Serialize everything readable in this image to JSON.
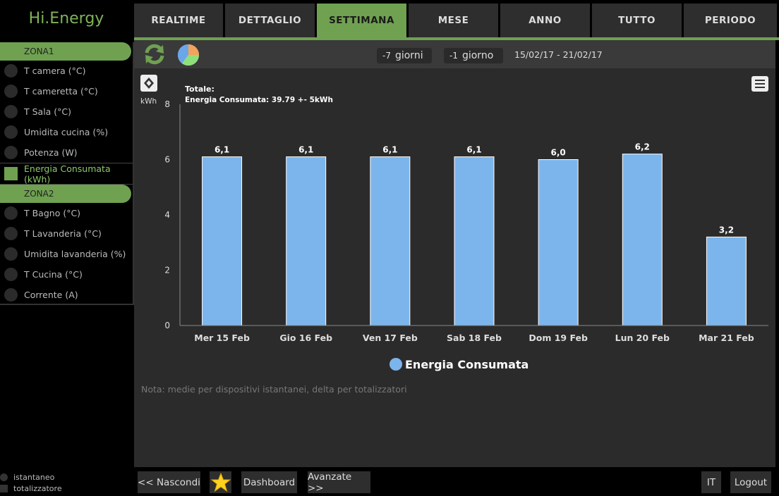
{
  "app_title": "Hi.Energy",
  "sidebar": {
    "zones": [
      {
        "name": "ZONA1",
        "items": [
          {
            "label": "T camera (°C)",
            "kind": "instant"
          },
          {
            "label": "T cameretta (°C)",
            "kind": "instant"
          },
          {
            "label": "T Sala (°C)",
            "kind": "instant"
          },
          {
            "label": "Umidita cucina (%)",
            "kind": "instant"
          },
          {
            "label": "Potenza (W)",
            "kind": "instant"
          },
          {
            "label": "Energia Consumata (kWh)",
            "kind": "total",
            "active": true
          }
        ]
      },
      {
        "name": "ZONA2",
        "items": [
          {
            "label": "T Bagno (°C)",
            "kind": "instant"
          },
          {
            "label": "T Lavanderia (°C)",
            "kind": "instant"
          },
          {
            "label": "Umidita lavanderia (%)",
            "kind": "instant"
          },
          {
            "label": "T Cucina (°C)",
            "kind": "instant"
          },
          {
            "label": "Corrente (A)",
            "kind": "instant"
          }
        ]
      }
    ],
    "legend": {
      "instant": "istantaneo",
      "total": "totalizzatore"
    }
  },
  "tabs": [
    {
      "label": "REALTIME"
    },
    {
      "label": "DETTAGLIO"
    },
    {
      "label": "SETTIMANA",
      "active": true
    },
    {
      "label": "MESE"
    },
    {
      "label": "ANNO"
    },
    {
      "label": "TUTTO"
    },
    {
      "label": "PERIODO"
    }
  ],
  "toolbar": {
    "minus_week_num": "-7",
    "minus_week_label": "giorni",
    "minus_day_num": "-1",
    "minus_day_label": "giorno",
    "date_range": "15/02/17 - 21/02/17"
  },
  "chart_data": {
    "type": "bar",
    "categories": [
      "Mer 15 Feb",
      "Gio 16 Feb",
      "Ven 17 Feb",
      "Sab 18 Feb",
      "Dom 19 Feb",
      "Lun 20 Feb",
      "Mar 21 Feb"
    ],
    "series": [
      {
        "name": "Energia Consumata",
        "values": [
          6.1,
          6.1,
          6.1,
          6.1,
          6.0,
          6.2,
          3.2
        ],
        "color": "#7cb5ec"
      }
    ],
    "data_labels": [
      "6,1",
      "6,1",
      "6,1",
      "6,1",
      "6,0",
      "6,2",
      "3,2"
    ],
    "title": "Totale:",
    "subtitle": "Energia Consumata: 39.79 +- 5kWh",
    "ylabel": "kWh",
    "ylim": [
      0,
      8
    ],
    "yticks": [
      0,
      2,
      4,
      6,
      8
    ],
    "grid": false,
    "legend": "bottom-center"
  },
  "note": "Nota: medie per dispositivi istantanei, delta per totalizzatori",
  "bottom": {
    "hide": "<< Nascondi",
    "dashboard": "Dashboard",
    "advanced": "Avanzate >>",
    "lang": "IT",
    "logout": "Logout"
  },
  "colors": {
    "accent": "#6fa151",
    "bar": "#7cb5ec",
    "panel": "#2b2b2b"
  }
}
